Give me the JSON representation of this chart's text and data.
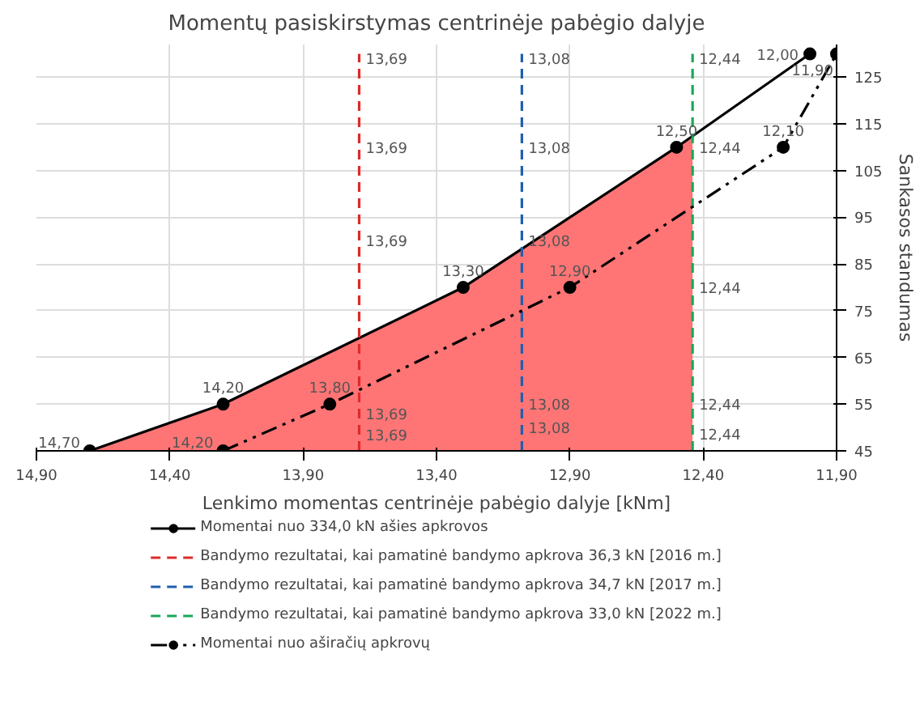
{
  "chart_data": {
    "type": "line",
    "title": "Momentų pasiskirstymas centrinėje pabėgio dalyje",
    "xlabel": "Lenkimo momentas centrinėje pabėgio dalyje [kNm]",
    "ylabel": "Sankasos standumas",
    "xlim": [
      14.9,
      11.9
    ],
    "ylim": [
      45,
      132
    ],
    "xticks": [
      {
        "value": 14.9,
        "label": "14,90"
      },
      {
        "value": 14.4,
        "label": "14,40"
      },
      {
        "value": 13.9,
        "label": "13,90"
      },
      {
        "value": 13.4,
        "label": "13,40"
      },
      {
        "value": 12.9,
        "label": "12,90"
      },
      {
        "value": 12.4,
        "label": "12,40"
      },
      {
        "value": 11.9,
        "label": "11,90"
      }
    ],
    "yticks": [
      45,
      55,
      65,
      75,
      85,
      95,
      105,
      115,
      125
    ],
    "grid": true,
    "legend": "bottom",
    "series": [
      {
        "type": "area",
        "color": "#ff7575",
        "x": [
          14.7,
          14.2,
          13.3,
          12.5,
          12.44
        ],
        "values": [
          45,
          55,
          80,
          110,
          112
        ]
      },
      {
        "name": "Momentai nuo 334,0 kN ašies apkrovos",
        "color": "#000000",
        "marker": "circle",
        "line_style": "solid",
        "x": [
          14.7,
          14.2,
          13.3,
          12.5,
          12.0
        ],
        "values": [
          45,
          55,
          80,
          110,
          130
        ]
      },
      {
        "name": "Bandymo rezultatai, kai pamatinė bandymo apkrova 36,3 kN [2016 m.]",
        "color": "#e02a2a",
        "marker": "none",
        "line_style": "dashed",
        "x": [
          13.69,
          13.69
        ],
        "values": [
          45,
          130
        ]
      },
      {
        "name": "Bandymo rezultatai, kai pamatinė bandymo apkrova 34,7 kN [2017 m.]",
        "color": "#1f5fb0",
        "marker": "none",
        "line_style": "dashed",
        "x": [
          13.08,
          13.08
        ],
        "values": [
          45,
          130
        ]
      },
      {
        "name": "Bandymo rezultatai, kai pamatinė bandymo apkrova 33,0 kN [2022 m.]",
        "color": "#18a85a",
        "marker": "none",
        "line_style": "dashed",
        "x": [
          12.44,
          12.44
        ],
        "values": [
          45,
          130
        ]
      },
      {
        "name": "Momentai nuo aširačių apkrovų",
        "color": "#000000",
        "marker": "circle",
        "line_style": "dashdot",
        "x": [
          14.2,
          13.8,
          12.9,
          12.1,
          11.9
        ],
        "values": [
          45,
          55,
          80,
          110,
          130
        ]
      }
    ],
    "annotations": [
      {
        "text": "14,70",
        "x": 14.7,
        "y": 45
      },
      {
        "text": "14,20",
        "x": 14.2,
        "y": 45
      },
      {
        "text": "14,20",
        "x": 14.2,
        "y": 55
      },
      {
        "text": "13,80",
        "x": 13.8,
        "y": 55
      },
      {
        "text": "13,30",
        "x": 13.3,
        "y": 80
      },
      {
        "text": "12,90",
        "x": 12.9,
        "y": 80
      },
      {
        "text": "12,50",
        "x": 12.5,
        "y": 110
      },
      {
        "text": "12,10",
        "x": 12.1,
        "y": 110
      },
      {
        "text": "12,00",
        "x": 12.0,
        "y": 130
      },
      {
        "text": "11,90",
        "x": 11.9,
        "y": 130
      },
      {
        "text": "13,69",
        "x": 13.69,
        "y": 129
      },
      {
        "text": "13,69",
        "x": 13.69,
        "y": 110
      },
      {
        "text": "13,69",
        "x": 13.69,
        "y": 90
      },
      {
        "text": "13,69",
        "x": 13.69,
        "y": 53
      },
      {
        "text": "13,69",
        "x": 13.69,
        "y": 48.5
      },
      {
        "text": "13,08",
        "x": 13.08,
        "y": 129
      },
      {
        "text": "13,08",
        "x": 13.08,
        "y": 110
      },
      {
        "text": "13,08",
        "x": 13.08,
        "y": 90
      },
      {
        "text": "13,08",
        "x": 13.08,
        "y": 55
      },
      {
        "text": "13,08",
        "x": 13.08,
        "y": 50
      },
      {
        "text": "12,44",
        "x": 12.44,
        "y": 129
      },
      {
        "text": "12,44",
        "x": 12.44,
        "y": 110
      },
      {
        "text": "12,44",
        "x": 12.44,
        "y": 80
      },
      {
        "text": "12,44",
        "x": 12.44,
        "y": 55
      },
      {
        "text": "12,44",
        "x": 12.44,
        "y": 48.6
      }
    ]
  }
}
